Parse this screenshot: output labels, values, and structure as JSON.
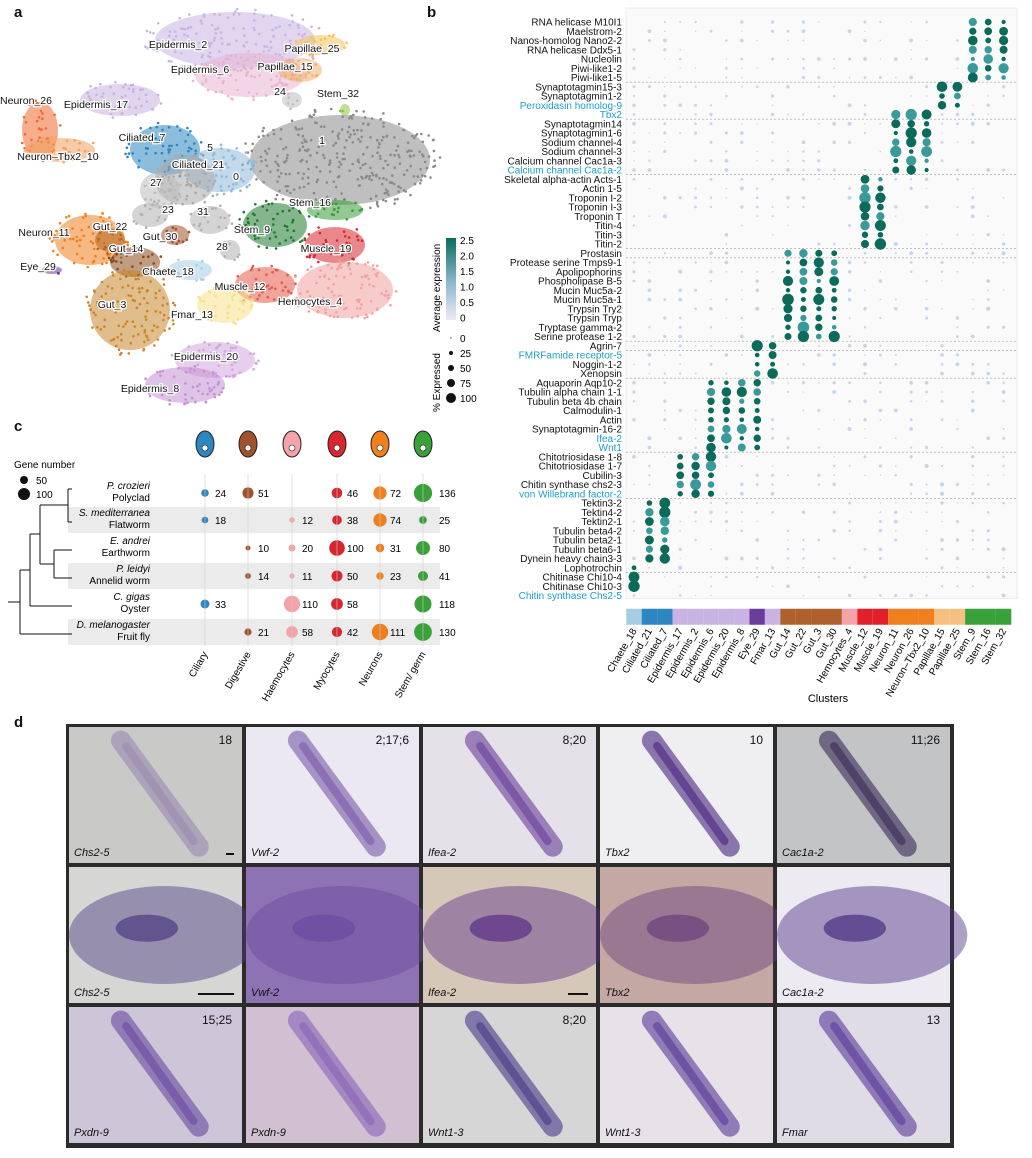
{
  "panels": {
    "a": "a",
    "b": "b",
    "c": "c",
    "d": "d"
  },
  "umap": {
    "labels": [
      {
        "text": "Epidermis_2",
        "color": "#c9b3e2"
      },
      {
        "text": "Epidermis_6",
        "color": "#e8b4cf"
      },
      {
        "text": "Papillae_25",
        "color": "#f5c35e"
      },
      {
        "text": "Papillae_15",
        "color": "#f0b070"
      },
      {
        "text": "Neuron_26",
        "color": "#ee6a2e"
      },
      {
        "text": "Epidermis_17",
        "color": "#c8b0df"
      },
      {
        "text": "24",
        "color": "#bdbdbd"
      },
      {
        "text": "Stem_32",
        "color": "#8cc63f"
      },
      {
        "text": "Ciliated_7",
        "color": "#2e86c1"
      },
      {
        "text": "5",
        "color": "#9a9a9a"
      },
      {
        "text": "1",
        "color": "#8a8a8a"
      },
      {
        "text": "Neuron–Tbx2_10",
        "color": "#f0a060"
      },
      {
        "text": "Ciliated_21",
        "color": "#90b8da"
      },
      {
        "text": "0",
        "color": "#aaaaaa"
      },
      {
        "text": "27",
        "color": "#bbbbbb"
      },
      {
        "text": "Stem_16",
        "color": "#3a9a3a"
      },
      {
        "text": "23",
        "color": "#b0b0b0"
      },
      {
        "text": "31",
        "color": "#b0b0b0"
      },
      {
        "text": "Neuron_11",
        "color": "#f07f1d"
      },
      {
        "text": "Gut_22",
        "color": "#b5651d"
      },
      {
        "text": "Gut_30",
        "color": "#a0522d"
      },
      {
        "text": "Stem_9",
        "color": "#1e7a2e"
      },
      {
        "text": "Muscle_19",
        "color": "#d7262e"
      },
      {
        "text": "Gut_14",
        "color": "#8b4a1b"
      },
      {
        "text": "28",
        "color": "#b0b0b0"
      },
      {
        "text": "Eye_29",
        "color": "#6a3d9a"
      },
      {
        "text": "Chaete_18",
        "color": "#a6cee3"
      },
      {
        "text": "Muscle_12",
        "color": "#e35a4a"
      },
      {
        "text": "Hemocytes_4",
        "color": "#f2a0a0"
      },
      {
        "text": "Gut_3",
        "color": "#c8862c"
      },
      {
        "text": "Fmar_13",
        "color": "#f7e08a"
      },
      {
        "text": "Epidermis_20",
        "color": "#d2a8dc"
      },
      {
        "text": "Epidermis_8",
        "color": "#c48fd4"
      }
    ],
    "legend": {
      "title_expr": "Average expression",
      "scale_ticks": [
        "2.5",
        "2.0",
        "1.5",
        "1.0",
        "0.5",
        "0"
      ],
      "title_pct": "% Expressed",
      "pct_ticks": [
        "0",
        "25",
        "50",
        "75",
        "100"
      ]
    }
  },
  "dotplot": {
    "genes": [
      {
        "name": "RNA helicase M10I1",
        "hl": false
      },
      {
        "name": "Maelstrom-2",
        "hl": false
      },
      {
        "name": "Nanos-homolog Nano2-2",
        "hl": false
      },
      {
        "name": "RNA helicase Ddx5-1",
        "hl": false
      },
      {
        "name": "Nucleolin",
        "hl": false
      },
      {
        "name": "Piwi-like1-2",
        "hl": false
      },
      {
        "name": "Piwi-like1-5",
        "hl": false
      },
      {
        "name": "Synaptotagmin15-3",
        "hl": false
      },
      {
        "name": "Synaptotagmin1-2",
        "hl": false
      },
      {
        "name": "Peroxidasin homolog-9",
        "hl": true
      },
      {
        "name": "Tbx2",
        "hl": true
      },
      {
        "name": "Synaptotagmin14",
        "hl": false
      },
      {
        "name": "Synaptotagmin1-6",
        "hl": false
      },
      {
        "name": "Sodium channel-4",
        "hl": false
      },
      {
        "name": "Sodium channel-3",
        "hl": false
      },
      {
        "name": "Calcium channel Cac1a-3",
        "hl": false
      },
      {
        "name": "Calcium channel Cac1a-2",
        "hl": true
      },
      {
        "name": "Skeletal alpha-actin Acts-1",
        "hl": false
      },
      {
        "name": "Actin 1-5",
        "hl": false
      },
      {
        "name": "Troponin I-2",
        "hl": false
      },
      {
        "name": "Troponin I-3",
        "hl": false
      },
      {
        "name": "Troponin T",
        "hl": false
      },
      {
        "name": "Titin-4",
        "hl": false
      },
      {
        "name": "Titin-3",
        "hl": false
      },
      {
        "name": "Titin-2",
        "hl": false
      },
      {
        "name": "Prostasin",
        "hl": false
      },
      {
        "name": "Protease serine Tmps9-1",
        "hl": false
      },
      {
        "name": "Apolipophorins",
        "hl": false
      },
      {
        "name": "Phospholipase B-5",
        "hl": false
      },
      {
        "name": "Mucin Muc5a-2",
        "hl": false
      },
      {
        "name": "Mucin Muc5a-1",
        "hl": false
      },
      {
        "name": "Trypsin Try2",
        "hl": false
      },
      {
        "name": "Trypsin Tryp",
        "hl": false
      },
      {
        "name": "Tryptase gamma-2",
        "hl": false
      },
      {
        "name": "Serine protease 1-2",
        "hl": false
      },
      {
        "name": "Agrin-7",
        "hl": false
      },
      {
        "name": "FMRFamide receptor-5",
        "hl": true
      },
      {
        "name": "Noggin-1-2",
        "hl": false
      },
      {
        "name": "Xenopsin",
        "hl": false
      },
      {
        "name": "Aquaporin Aqp10-2",
        "hl": false
      },
      {
        "name": "Tubulin alpha chain 1-1",
        "hl": false
      },
      {
        "name": "Tubulin beta 4b chain",
        "hl": false
      },
      {
        "name": "Calmodulin-1",
        "hl": false
      },
      {
        "name": "Actin",
        "hl": false
      },
      {
        "name": "Synaptotagmin-16-2",
        "hl": false
      },
      {
        "name": "Ifea-2",
        "hl": true
      },
      {
        "name": "Wnt1",
        "hl": true
      },
      {
        "name": "Chitotriosidase 1-8",
        "hl": false
      },
      {
        "name": "Chitotriosidase 1-7",
        "hl": false
      },
      {
        "name": "Cubilin-3",
        "hl": false
      },
      {
        "name": "Chitin synthase chs2-3",
        "hl": false
      },
      {
        "name": "von Willebrand factor-2",
        "hl": true
      },
      {
        "name": "Tektin3-2",
        "hl": false
      },
      {
        "name": "Tektin4-2",
        "hl": false
      },
      {
        "name": "Tektin2-1",
        "hl": false
      },
      {
        "name": "Tubulin beta4-2",
        "hl": false
      },
      {
        "name": "Tubulin beta2-1",
        "hl": false
      },
      {
        "name": "Tubulin beta6-1",
        "hl": false
      },
      {
        "name": "Dynein heavy chain3-3",
        "hl": false
      },
      {
        "name": "Lophotrochin",
        "hl": false
      },
      {
        "name": "Chitinase Chi10-4",
        "hl": false
      },
      {
        "name": "Chitinase Chi10-3",
        "hl": false
      },
      {
        "name": "Chitin synthase Chs2-5",
        "hl": true
      }
    ],
    "clusters": [
      "Chaete_18",
      "Ciliated_21",
      "Ciliated_7",
      "Epidermis_17",
      "Epidermis_2",
      "Epidermis_6",
      "Epidermis_20",
      "Epidermis_8",
      "Eye_29",
      "Fmar_13",
      "Gut_14",
      "Gut_22",
      "Gut_3",
      "Gut_30",
      "Hemocytes_4",
      "Muscle_12",
      "Muscle_19",
      "Neuron_11",
      "Neuron_26",
      "Neuron–Tbx2_10",
      "Papillae_15",
      "Papillae_25",
      "Stem_9",
      "Stem_16",
      "Stem_32"
    ],
    "cluster_colors": [
      "#a6cee3",
      "#2e86c1",
      "#2e86c1",
      "#c9b3e2",
      "#c9b3e2",
      "#c9b3e2",
      "#c9b3e2",
      "#c9b3e2",
      "#6a3d9a",
      "#c9b3e2",
      "#b0602a",
      "#b0602a",
      "#b0602a",
      "#b0602a",
      "#f4a3a8",
      "#e0202a",
      "#e0202a",
      "#f07f1d",
      "#f07f1d",
      "#f07f1d",
      "#f5c080",
      "#f5c080",
      "#3aa03a",
      "#3aa03a",
      "#3aa03a"
    ],
    "xlabel": "Clusters"
  },
  "phylo": {
    "gene_number_title": "Gene number",
    "size_legend": [
      "50",
      "100"
    ],
    "columns": [
      "Ciliary",
      "Digestive",
      "Haemocytes",
      "Myocytes",
      "Neurons",
      "Stem/ germ"
    ],
    "column_colors": [
      "#2e86c1",
      "#a0522d",
      "#f4a3a8",
      "#d7262e",
      "#f07f1d",
      "#3aa03a"
    ],
    "species": [
      {
        "latin": "P. crozieri",
        "common": "Polyclad",
        "values": [
          "24",
          "51",
          "",
          "46",
          "72",
          "136"
        ]
      },
      {
        "latin": "S. mediterranea",
        "common": "Flatworm",
        "values": [
          "18",
          "",
          "12",
          "38",
          "74",
          "25"
        ]
      },
      {
        "latin": "E. andrei",
        "common": "Earthworm",
        "values": [
          "",
          "10",
          "20",
          "100",
          "31",
          "80"
        ]
      },
      {
        "latin": "P. leidyi",
        "common": "Annelid worm",
        "values": [
          "",
          "14",
          "11",
          "50",
          "23",
          "41"
        ]
      },
      {
        "latin": "C. gigas",
        "common": "Oyster",
        "values": [
          "33",
          "",
          "110",
          "58",
          "",
          "118"
        ]
      },
      {
        "latin": "D. melanogaster",
        "common": "Fruit fly",
        "values": [
          "",
          "21",
          "58",
          "42",
          "111",
          "130"
        ]
      }
    ]
  },
  "panel_d": {
    "cells": [
      {
        "gene": "Chs2-5",
        "num": "18",
        "bg": "#c9c9c7",
        "stain": "#9a8bb0"
      },
      {
        "gene": "Vwf-2",
        "num": "2;17;6",
        "bg": "#ece8f2",
        "stain": "#7a5aa8"
      },
      {
        "gene": "Ifea-2",
        "num": "8;20",
        "bg": "#e4e2e8",
        "stain": "#6a3f9a"
      },
      {
        "gene": "Tbx2",
        "num": "10",
        "bg": "#efeff2",
        "stain": "#4a2580"
      },
      {
        "gene": "Cac1a-2",
        "num": "11;26",
        "bg": "#c2c4c6",
        "stain": "#3a2a58"
      },
      {
        "gene": "Chs2-5",
        "num": "",
        "bg": "#d6d6d4",
        "stain": "#4b3a80"
      },
      {
        "gene": "Vwf-2",
        "num": "",
        "bg": "#8d72b4",
        "stain": "#6a4a9e"
      },
      {
        "gene": "Ifea-2",
        "num": "",
        "bg": "#d6c8b8",
        "stain": "#5a2e88"
      },
      {
        "gene": "Tbx2",
        "num": "",
        "bg": "#c4a8a4",
        "stain": "#6a3f7a"
      },
      {
        "gene": "Cac1a-2",
        "num": "",
        "bg": "#eeeaf2",
        "stain": "#4a2f82"
      },
      {
        "gene": "Pxdn-9",
        "num": "15;25",
        "bg": "#cdc6d8",
        "stain": "#6a4aa0"
      },
      {
        "gene": "Pxdn-9",
        "num": "",
        "bg": "#d0c0d2",
        "stain": "#8a64b8"
      },
      {
        "gene": "Wnt1-3",
        "num": "8;20",
        "bg": "#d6d6d6",
        "stain": "#4a3a88"
      },
      {
        "gene": "Wnt1-3",
        "num": "",
        "bg": "#e6e2e8",
        "stain": "#5a3a98"
      },
      {
        "gene": "Fmar",
        "num": "13",
        "bg": "#e0dce6",
        "stain": "#5a3a98"
      }
    ]
  }
}
